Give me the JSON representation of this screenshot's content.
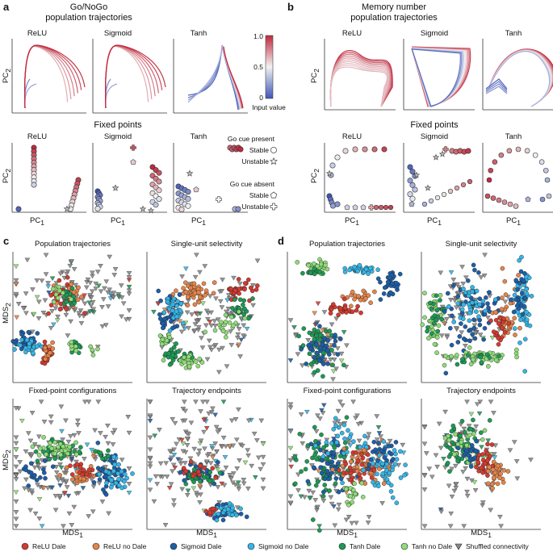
{
  "panels": {
    "a": "a",
    "b": "b",
    "c": "c",
    "d": "d"
  },
  "a": {
    "title": "Go/NoGo",
    "traj_title": "population trajectories",
    "fp_title": "Fixed points",
    "subplots": [
      "ReLU",
      "Sigmoid",
      "Tanh"
    ],
    "ylabel": "PC",
    "xlabel": "PC",
    "sub2": "2",
    "sub1": "1"
  },
  "b": {
    "title": "Memory number",
    "traj_title": "population trajectories",
    "fp_title": "Fixed points",
    "subplots": [
      "ReLU",
      "Sigmoid",
      "Tanh"
    ]
  },
  "colorbar": {
    "ticks": [
      "1.0",
      "0.5",
      "0"
    ],
    "label": "Input value",
    "high_color": "#c0283c",
    "low_color": "#3e55b8"
  },
  "fp_legend": {
    "present_title": "Go cue present",
    "absent_title": "Go cue absent",
    "stable": "Stable",
    "unstable": "Unstable"
  },
  "mds": {
    "c_titles": [
      "Population trajectories",
      "Single-unit selectivity",
      "Fixed-point configurations",
      "Trajectory endpoints"
    ],
    "d_titles": [
      "Population trajectories",
      "Single-unit selectivity",
      "Fixed-point configurations",
      "Trajectory endpoints"
    ],
    "xlabel": "MDS",
    "ylabel": "MDS",
    "sub1": "1",
    "sub2": "2"
  },
  "legend": [
    {
      "label": "ReLU Dale",
      "color": "#d43a30",
      "shape": "circle"
    },
    {
      "label": "ReLU no Dale",
      "color": "#e5854a",
      "shape": "circle"
    },
    {
      "label": "Sigmoid Dale",
      "color": "#1d5fa8",
      "shape": "circle"
    },
    {
      "label": "Sigmoid no Dale",
      "color": "#35b6e8",
      "shape": "circle"
    },
    {
      "label": "Tanh Dale",
      "color": "#1c9a55",
      "shape": "circle"
    },
    {
      "label": "Tanh no Dale",
      "color": "#8fdc78",
      "shape": "circle"
    },
    {
      "label": "Shuffled connectivity",
      "color": "#8a8a8a",
      "shape": "triangle"
    }
  ],
  "chart_data": [
    {
      "type": "line",
      "title": "Go/NoGo population trajectories",
      "series_by": "input value (0 to 1)",
      "subplots": [
        "ReLU",
        "Sigmoid",
        "Tanh"
      ],
      "xlabel": "PC1",
      "ylabel": "PC2"
    },
    {
      "type": "scatter",
      "title": "Go/NoGo fixed points",
      "subplots": [
        "ReLU",
        "Sigmoid",
        "Tanh"
      ],
      "markers": {
        "go_cue_present": {
          "stable": "circle",
          "unstable": "star"
        },
        "go_cue_absent": {
          "stable": "pentagon",
          "unstable": "cross"
        }
      }
    },
    {
      "type": "line",
      "title": "Memory number population trajectories",
      "subplots": [
        "ReLU",
        "Sigmoid",
        "Tanh"
      ]
    },
    {
      "type": "scatter",
      "title": "Memory number fixed points",
      "subplots": [
        "ReLU",
        "Sigmoid",
        "Tanh"
      ]
    },
    {
      "type": "scatter",
      "title": "MDS embeddings (c: Go/NoGo)",
      "subplots": [
        "Population trajectories",
        "Single-unit selectivity",
        "Fixed-point configurations",
        "Trajectory endpoints"
      ],
      "groups": [
        "ReLU Dale",
        "ReLU no Dale",
        "Sigmoid Dale",
        "Sigmoid no Dale",
        "Tanh Dale",
        "Tanh no Dale",
        "Shuffled connectivity"
      ]
    },
    {
      "type": "scatter",
      "title": "MDS embeddings (d: Memory number)",
      "subplots": [
        "Population trajectories",
        "Single-unit selectivity",
        "Fixed-point configurations",
        "Trajectory endpoints"
      ],
      "groups": [
        "ReLU Dale",
        "ReLU no Dale",
        "Sigmoid Dale",
        "Sigmoid no Dale",
        "Tanh Dale",
        "Tanh no Dale",
        "Shuffled connectivity"
      ]
    }
  ]
}
